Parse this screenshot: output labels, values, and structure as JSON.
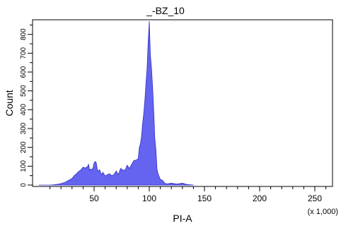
{
  "chart_data": {
    "type": "area",
    "title": "_-BZ_10",
    "xlabel": "PI-A",
    "ylabel": "Count",
    "x_scale_note": "(x 1,000)",
    "xlim": [
      0,
      262
    ],
    "ylim": [
      0,
      870
    ],
    "x_ticks": [
      50,
      100,
      150,
      200,
      250
    ],
    "y_ticks": [
      0,
      100,
      200,
      300,
      400,
      500,
      600,
      700,
      800
    ],
    "grid": false,
    "fill_color": "#6464f0",
    "series": [
      {
        "x": [
          0,
          10,
          14,
          18,
          20,
          24,
          26,
          30,
          32,
          34,
          36,
          38,
          40,
          42,
          44,
          45,
          46,
          47,
          48,
          49,
          50,
          51,
          52,
          53,
          54,
          55,
          56,
          57,
          58,
          59,
          60,
          62,
          64,
          66,
          68,
          70,
          72,
          74,
          76,
          78,
          80,
          82,
          84,
          86,
          88,
          90,
          91,
          92,
          93,
          94,
          95,
          96,
          97,
          98,
          99,
          100,
          101,
          102,
          103,
          104,
          105,
          106,
          107,
          108,
          110,
          112,
          114,
          116,
          120,
          125,
          130,
          134,
          140
        ],
        "y": [
          0,
          0,
          2,
          5,
          8,
          15,
          22,
          35,
          50,
          60,
          72,
          80,
          95,
          90,
          98,
          110,
          78,
          85,
          82,
          90,
          118,
          125,
          118,
          80,
          75,
          82,
          65,
          55,
          68,
          58,
          48,
          55,
          60,
          50,
          55,
          75,
          55,
          88,
          80,
          78,
          105,
          88,
          110,
          130,
          132,
          140,
          200,
          220,
          260,
          330,
          380,
          450,
          540,
          620,
          760,
          870,
          690,
          620,
          520,
          400,
          250,
          190,
          85,
          60,
          30,
          25,
          10,
          6,
          10,
          5,
          10,
          3,
          0
        ]
      }
    ]
  }
}
